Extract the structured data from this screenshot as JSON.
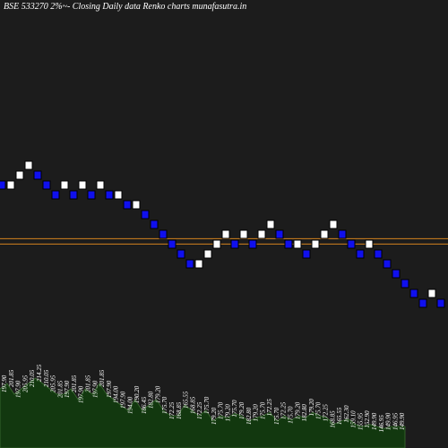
{
  "title": "BSE 533270  2%~-  Closing Daily data  Renko  charts munafasutra.in",
  "colors": {
    "background": "#1c1c1c",
    "up_brick": "#ffffff",
    "down_brick": "#1010ee",
    "brick_outline": "#000000",
    "level_line": "#d2821e",
    "volume_fill": "#12380f",
    "volume_outline": "#3c6e32"
  },
  "chart_data": {
    "type": "renko",
    "brick_size_label": "2%",
    "bricks": [
      {
        "dir": "down",
        "level": 0
      },
      {
        "dir": "up",
        "level": 0
      },
      {
        "dir": "up",
        "level": 1
      },
      {
        "dir": "up",
        "level": 2
      },
      {
        "dir": "down",
        "level": 1
      },
      {
        "dir": "down",
        "level": 0
      },
      {
        "dir": "down",
        "level": -1
      },
      {
        "dir": "up",
        "level": 0
      },
      {
        "dir": "down",
        "level": -1
      },
      {
        "dir": "up",
        "level": 0
      },
      {
        "dir": "down",
        "level": -1
      },
      {
        "dir": "up",
        "level": 0
      },
      {
        "dir": "down",
        "level": -1
      },
      {
        "dir": "up",
        "level": -1
      },
      {
        "dir": "down",
        "level": -2
      },
      {
        "dir": "up",
        "level": -2
      },
      {
        "dir": "down",
        "level": -3
      },
      {
        "dir": "down",
        "level": -4
      },
      {
        "dir": "down",
        "level": -5
      },
      {
        "dir": "down",
        "level": -6
      },
      {
        "dir": "down",
        "level": -7
      },
      {
        "dir": "down",
        "level": -8
      },
      {
        "dir": "up",
        "level": -8
      },
      {
        "dir": "up",
        "level": -7
      },
      {
        "dir": "up",
        "level": -6
      },
      {
        "dir": "up",
        "level": -5
      },
      {
        "dir": "down",
        "level": -6
      },
      {
        "dir": "up",
        "level": -5
      },
      {
        "dir": "down",
        "level": -6
      },
      {
        "dir": "up",
        "level": -5
      },
      {
        "dir": "up",
        "level": -4
      },
      {
        "dir": "down",
        "level": -5
      },
      {
        "dir": "down",
        "level": -6
      },
      {
        "dir": "up",
        "level": -6
      },
      {
        "dir": "down",
        "level": -7
      },
      {
        "dir": "up",
        "level": -6
      },
      {
        "dir": "up",
        "level": -5
      },
      {
        "dir": "up",
        "level": -4
      },
      {
        "dir": "down",
        "level": -5
      },
      {
        "dir": "down",
        "level": -6
      },
      {
        "dir": "down",
        "level": -7
      },
      {
        "dir": "up",
        "level": -6
      },
      {
        "dir": "down",
        "level": -7
      },
      {
        "dir": "down",
        "level": -8
      },
      {
        "dir": "down",
        "level": -9
      },
      {
        "dir": "down",
        "level": -10
      },
      {
        "dir": "down",
        "level": -11
      },
      {
        "dir": "down",
        "level": -12
      },
      {
        "dir": "up",
        "level": -11
      },
      {
        "dir": "down",
        "level": -12
      }
    ],
    "reference_lines": [
      -6.4,
      -5.85
    ],
    "price_labels": [
      "197.90",
      "201.85",
      "197.90",
      "205.95",
      "210.05",
      "214.25",
      "210.05",
      "205.95",
      "201.85",
      "197.90",
      "201.85",
      "197.90",
      "201.85",
      "197.90",
      "201.85",
      "197.90",
      "194.00",
      "197.90",
      "194.00",
      "190.20",
      "186.45",
      "182.80",
      "179.20",
      "175.70",
      "172.25",
      "168.85",
      "165.55",
      "168.85",
      "172.25",
      "175.70",
      "179.20",
      "175.70",
      "179.20",
      "175.70",
      "179.20",
      "182.80",
      "179.20",
      "175.70",
      "172.25",
      "175.70",
      "172.25",
      "175.70",
      "179.20",
      "182.80",
      "179.20",
      "175.70",
      "172.25",
      "168.85",
      "165.55",
      "162.30",
      "159.10",
      "155.95",
      "152.90",
      "149.90",
      "146.95",
      "149.90",
      "146.95",
      "149.90"
    ],
    "volume": [
      0.55,
      0.6,
      0.5,
      0.55,
      0.6,
      0.65,
      0.6,
      0.55,
      0.5,
      0.5,
      0.55,
      0.45,
      0.55,
      0.5,
      0.6,
      0.5,
      0.45,
      0.4,
      0.35,
      0.45,
      0.35,
      0.4,
      0.45,
      0.35,
      0.3,
      0.3,
      0.4,
      0.35,
      0.3,
      0.35,
      0.25,
      0.3,
      0.28,
      0.32,
      0.3,
      0.25,
      0.28,
      0.3,
      0.33,
      0.25,
      0.3,
      0.26,
      0.3,
      0.28,
      0.33,
      0.3,
      0.28,
      0.22,
      0.25,
      0.27,
      0.22,
      0.2,
      0.22,
      0.2,
      0.18,
      0.2,
      0.2,
      0.2
    ]
  }
}
